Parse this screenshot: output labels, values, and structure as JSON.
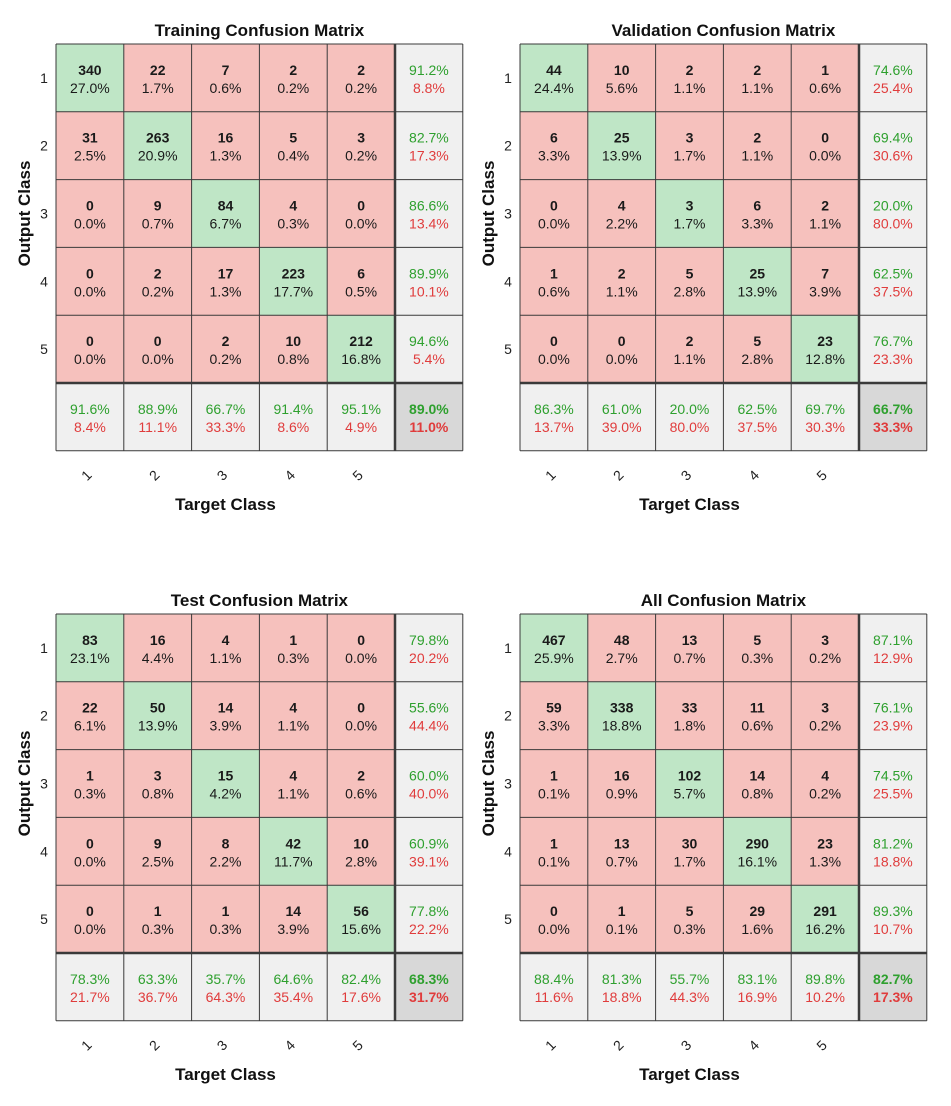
{
  "chart_data": [
    {
      "type": "heatmap",
      "title": "Training Confusion Matrix",
      "xlabel": "Target Class",
      "ylabel": "Output Class",
      "classes": [
        "1",
        "2",
        "3",
        "4",
        "5"
      ],
      "cells": [
        [
          {
            "count": "340",
            "pct": "27.0%"
          },
          {
            "count": "22",
            "pct": "1.7%"
          },
          {
            "count": "7",
            "pct": "0.6%"
          },
          {
            "count": "2",
            "pct": "0.2%"
          },
          {
            "count": "2",
            "pct": "0.2%"
          }
        ],
        [
          {
            "count": "31",
            "pct": "2.5%"
          },
          {
            "count": "263",
            "pct": "20.9%"
          },
          {
            "count": "16",
            "pct": "1.3%"
          },
          {
            "count": "5",
            "pct": "0.4%"
          },
          {
            "count": "3",
            "pct": "0.2%"
          }
        ],
        [
          {
            "count": "0",
            "pct": "0.0%"
          },
          {
            "count": "9",
            "pct": "0.7%"
          },
          {
            "count": "84",
            "pct": "6.7%"
          },
          {
            "count": "4",
            "pct": "0.3%"
          },
          {
            "count": "0",
            "pct": "0.0%"
          }
        ],
        [
          {
            "count": "0",
            "pct": "0.0%"
          },
          {
            "count": "2",
            "pct": "0.2%"
          },
          {
            "count": "17",
            "pct": "1.3%"
          },
          {
            "count": "223",
            "pct": "17.7%"
          },
          {
            "count": "6",
            "pct": "0.5%"
          }
        ],
        [
          {
            "count": "0",
            "pct": "0.0%"
          },
          {
            "count": "0",
            "pct": "0.0%"
          },
          {
            "count": "2",
            "pct": "0.2%"
          },
          {
            "count": "10",
            "pct": "0.8%"
          },
          {
            "count": "212",
            "pct": "16.8%"
          }
        ]
      ],
      "row_summary": [
        {
          "correct": "91.2%",
          "wrong": "8.8%"
        },
        {
          "correct": "82.7%",
          "wrong": "17.3%"
        },
        {
          "correct": "86.6%",
          "wrong": "13.4%"
        },
        {
          "correct": "89.9%",
          "wrong": "10.1%"
        },
        {
          "correct": "94.6%",
          "wrong": "5.4%"
        }
      ],
      "col_summary": [
        {
          "correct": "91.6%",
          "wrong": "8.4%"
        },
        {
          "correct": "88.9%",
          "wrong": "11.1%"
        },
        {
          "correct": "66.7%",
          "wrong": "33.3%"
        },
        {
          "correct": "91.4%",
          "wrong": "8.6%"
        },
        {
          "correct": "95.1%",
          "wrong": "4.9%"
        }
      ],
      "overall": {
        "correct": "89.0%",
        "wrong": "11.0%"
      }
    },
    {
      "type": "heatmap",
      "title": "Validation Confusion Matrix",
      "xlabel": "Target Class",
      "ylabel": "Output Class",
      "classes": [
        "1",
        "2",
        "3",
        "4",
        "5"
      ],
      "cells": [
        [
          {
            "count": "44",
            "pct": "24.4%"
          },
          {
            "count": "10",
            "pct": "5.6%"
          },
          {
            "count": "2",
            "pct": "1.1%"
          },
          {
            "count": "2",
            "pct": "1.1%"
          },
          {
            "count": "1",
            "pct": "0.6%"
          }
        ],
        [
          {
            "count": "6",
            "pct": "3.3%"
          },
          {
            "count": "25",
            "pct": "13.9%"
          },
          {
            "count": "3",
            "pct": "1.7%"
          },
          {
            "count": "2",
            "pct": "1.1%"
          },
          {
            "count": "0",
            "pct": "0.0%"
          }
        ],
        [
          {
            "count": "0",
            "pct": "0.0%"
          },
          {
            "count": "4",
            "pct": "2.2%"
          },
          {
            "count": "3",
            "pct": "1.7%"
          },
          {
            "count": "6",
            "pct": "3.3%"
          },
          {
            "count": "2",
            "pct": "1.1%"
          }
        ],
        [
          {
            "count": "1",
            "pct": "0.6%"
          },
          {
            "count": "2",
            "pct": "1.1%"
          },
          {
            "count": "5",
            "pct": "2.8%"
          },
          {
            "count": "25",
            "pct": "13.9%"
          },
          {
            "count": "7",
            "pct": "3.9%"
          }
        ],
        [
          {
            "count": "0",
            "pct": "0.0%"
          },
          {
            "count": "0",
            "pct": "0.0%"
          },
          {
            "count": "2",
            "pct": "1.1%"
          },
          {
            "count": "5",
            "pct": "2.8%"
          },
          {
            "count": "23",
            "pct": "12.8%"
          }
        ]
      ],
      "row_summary": [
        {
          "correct": "74.6%",
          "wrong": "25.4%"
        },
        {
          "correct": "69.4%",
          "wrong": "30.6%"
        },
        {
          "correct": "20.0%",
          "wrong": "80.0%"
        },
        {
          "correct": "62.5%",
          "wrong": "37.5%"
        },
        {
          "correct": "76.7%",
          "wrong": "23.3%"
        }
      ],
      "col_summary": [
        {
          "correct": "86.3%",
          "wrong": "13.7%"
        },
        {
          "correct": "61.0%",
          "wrong": "39.0%"
        },
        {
          "correct": "20.0%",
          "wrong": "80.0%"
        },
        {
          "correct": "62.5%",
          "wrong": "37.5%"
        },
        {
          "correct": "69.7%",
          "wrong": "30.3%"
        }
      ],
      "overall": {
        "correct": "66.7%",
        "wrong": "33.3%"
      }
    },
    {
      "type": "heatmap",
      "title": "Test Confusion Matrix",
      "xlabel": "Target Class",
      "ylabel": "Output Class",
      "classes": [
        "1",
        "2",
        "3",
        "4",
        "5"
      ],
      "cells": [
        [
          {
            "count": "83",
            "pct": "23.1%"
          },
          {
            "count": "16",
            "pct": "4.4%"
          },
          {
            "count": "4",
            "pct": "1.1%"
          },
          {
            "count": "1",
            "pct": "0.3%"
          },
          {
            "count": "0",
            "pct": "0.0%"
          }
        ],
        [
          {
            "count": "22",
            "pct": "6.1%"
          },
          {
            "count": "50",
            "pct": "13.9%"
          },
          {
            "count": "14",
            "pct": "3.9%"
          },
          {
            "count": "4",
            "pct": "1.1%"
          },
          {
            "count": "0",
            "pct": "0.0%"
          }
        ],
        [
          {
            "count": "1",
            "pct": "0.3%"
          },
          {
            "count": "3",
            "pct": "0.8%"
          },
          {
            "count": "15",
            "pct": "4.2%"
          },
          {
            "count": "4",
            "pct": "1.1%"
          },
          {
            "count": "2",
            "pct": "0.6%"
          }
        ],
        [
          {
            "count": "0",
            "pct": "0.0%"
          },
          {
            "count": "9",
            "pct": "2.5%"
          },
          {
            "count": "8",
            "pct": "2.2%"
          },
          {
            "count": "42",
            "pct": "11.7%"
          },
          {
            "count": "10",
            "pct": "2.8%"
          }
        ],
        [
          {
            "count": "0",
            "pct": "0.0%"
          },
          {
            "count": "1",
            "pct": "0.3%"
          },
          {
            "count": "1",
            "pct": "0.3%"
          },
          {
            "count": "14",
            "pct": "3.9%"
          },
          {
            "count": "56",
            "pct": "15.6%"
          }
        ]
      ],
      "row_summary": [
        {
          "correct": "79.8%",
          "wrong": "20.2%"
        },
        {
          "correct": "55.6%",
          "wrong": "44.4%"
        },
        {
          "correct": "60.0%",
          "wrong": "40.0%"
        },
        {
          "correct": "60.9%",
          "wrong": "39.1%"
        },
        {
          "correct": "77.8%",
          "wrong": "22.2%"
        }
      ],
      "col_summary": [
        {
          "correct": "78.3%",
          "wrong": "21.7%"
        },
        {
          "correct": "63.3%",
          "wrong": "36.7%"
        },
        {
          "correct": "35.7%",
          "wrong": "64.3%"
        },
        {
          "correct": "64.6%",
          "wrong": "35.4%"
        },
        {
          "correct": "82.4%",
          "wrong": "17.6%"
        }
      ],
      "overall": {
        "correct": "68.3%",
        "wrong": "31.7%"
      }
    },
    {
      "type": "heatmap",
      "title": "All Confusion Matrix",
      "xlabel": "Target Class",
      "ylabel": "Output Class",
      "classes": [
        "1",
        "2",
        "3",
        "4",
        "5"
      ],
      "cells": [
        [
          {
            "count": "467",
            "pct": "25.9%"
          },
          {
            "count": "48",
            "pct": "2.7%"
          },
          {
            "count": "13",
            "pct": "0.7%"
          },
          {
            "count": "5",
            "pct": "0.3%"
          },
          {
            "count": "3",
            "pct": "0.2%"
          }
        ],
        [
          {
            "count": "59",
            "pct": "3.3%"
          },
          {
            "count": "338",
            "pct": "18.8%"
          },
          {
            "count": "33",
            "pct": "1.8%"
          },
          {
            "count": "11",
            "pct": "0.6%"
          },
          {
            "count": "3",
            "pct": "0.2%"
          }
        ],
        [
          {
            "count": "1",
            "pct": "0.1%"
          },
          {
            "count": "16",
            "pct": "0.9%"
          },
          {
            "count": "102",
            "pct": "5.7%"
          },
          {
            "count": "14",
            "pct": "0.8%"
          },
          {
            "count": "4",
            "pct": "0.2%"
          }
        ],
        [
          {
            "count": "1",
            "pct": "0.1%"
          },
          {
            "count": "13",
            "pct": "0.7%"
          },
          {
            "count": "30",
            "pct": "1.7%"
          },
          {
            "count": "290",
            "pct": "16.1%"
          },
          {
            "count": "23",
            "pct": "1.3%"
          }
        ],
        [
          {
            "count": "0",
            "pct": "0.0%"
          },
          {
            "count": "1",
            "pct": "0.1%"
          },
          {
            "count": "5",
            "pct": "0.3%"
          },
          {
            "count": "29",
            "pct": "1.6%"
          },
          {
            "count": "291",
            "pct": "16.2%"
          }
        ]
      ],
      "row_summary": [
        {
          "correct": "87.1%",
          "wrong": "12.9%"
        },
        {
          "correct": "76.1%",
          "wrong": "23.9%"
        },
        {
          "correct": "74.5%",
          "wrong": "25.5%"
        },
        {
          "correct": "81.2%",
          "wrong": "18.8%"
        },
        {
          "correct": "89.3%",
          "wrong": "10.7%"
        }
      ],
      "col_summary": [
        {
          "correct": "88.4%",
          "wrong": "11.6%"
        },
        {
          "correct": "81.3%",
          "wrong": "18.8%"
        },
        {
          "correct": "55.7%",
          "wrong": "44.3%"
        },
        {
          "correct": "83.1%",
          "wrong": "16.9%"
        },
        {
          "correct": "89.8%",
          "wrong": "10.2%"
        }
      ],
      "overall": {
        "correct": "82.7%",
        "wrong": "17.3%"
      }
    }
  ],
  "colors": {
    "diagonal": "#bfe6c6",
    "off_diagonal": "#f6c1bd",
    "summary": "#f0f0f0",
    "overall": "#d8d8d8",
    "correct_text": "#2ea02e",
    "wrong_text": "#e03c3c",
    "count_text": "#1a1a1a",
    "grid": "#3a3a3a"
  }
}
